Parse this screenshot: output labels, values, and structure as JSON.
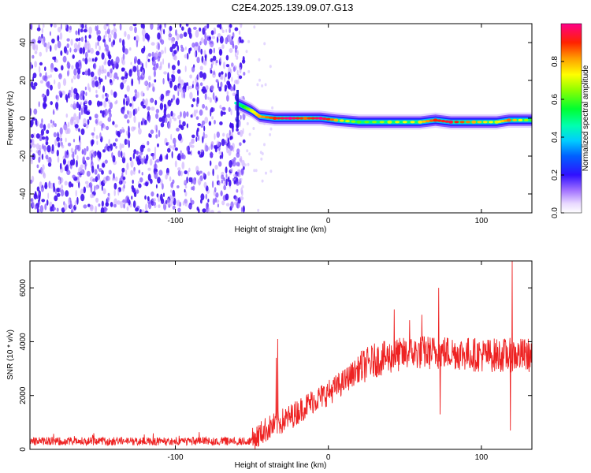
{
  "title": "C2E4.2025.139.09.07.G13",
  "colorbar": {
    "label": "Normalized spectral amplitude",
    "ticks": [
      "0.0",
      "0.2",
      "0.4",
      "0.6",
      "0.8"
    ],
    "tick_values": [
      0.0,
      0.2,
      0.4,
      0.6,
      0.8
    ],
    "range": [
      0,
      1
    ]
  },
  "chart_data": [
    {
      "type": "heatmap",
      "xlabel": "Height of straight line (km)",
      "ylabel": "Frequency (Hz)",
      "xlim": [
        -195,
        133
      ],
      "ylim": [
        -50,
        50
      ],
      "xticks": [
        -100,
        0,
        100
      ],
      "xtick_labels": [
        "-100",
        "0",
        "100"
      ],
      "yticks": [
        -40,
        -20,
        0,
        20,
        40
      ],
      "ytick_labels": [
        "-40",
        "-20",
        "0",
        "20",
        "40"
      ],
      "noise_region": {
        "x": [
          -195,
          -57
        ],
        "y": [
          -50,
          50
        ],
        "amplitude": 0.15
      },
      "ridge": [
        {
          "x": -60,
          "y": 8,
          "amp": 0.45
        },
        {
          "x": -55,
          "y": 6,
          "amp": 0.55
        },
        {
          "x": -50,
          "y": 4,
          "amp": 0.7
        },
        {
          "x": -45,
          "y": 1,
          "amp": 0.8
        },
        {
          "x": -35,
          "y": 0,
          "amp": 0.9
        },
        {
          "x": -25,
          "y": 0,
          "amp": 1.0
        },
        {
          "x": -15,
          "y": 0,
          "amp": 0.85
        },
        {
          "x": -5,
          "y": 0,
          "amp": 1.0
        },
        {
          "x": 5,
          "y": -1,
          "amp": 0.8
        },
        {
          "x": 20,
          "y": -2,
          "amp": 0.6
        },
        {
          "x": 40,
          "y": -2,
          "amp": 0.7
        },
        {
          "x": 60,
          "y": -2,
          "amp": 0.75
        },
        {
          "x": 70,
          "y": -1,
          "amp": 0.9
        },
        {
          "x": 80,
          "y": -2,
          "amp": 0.95
        },
        {
          "x": 95,
          "y": -2,
          "amp": 0.8
        },
        {
          "x": 110,
          "y": -2,
          "amp": 0.7
        },
        {
          "x": 118,
          "y": -1,
          "amp": 0.85
        },
        {
          "x": 133,
          "y": -1,
          "amp": 0.6
        }
      ]
    },
    {
      "type": "line",
      "xlabel": "Height of straight line (km)",
      "ylabel": "SNR (10 * v/v)",
      "xlim": [
        -195,
        133
      ],
      "ylim": [
        0,
        7000
      ],
      "xticks": [
        -100,
        0,
        100
      ],
      "xtick_labels": [
        "-100",
        "0",
        "100"
      ],
      "yticks": [
        0,
        2000,
        4000,
        6000
      ],
      "ytick_labels": [
        "0",
        "2000",
        "4000",
        "6000"
      ],
      "color": "#ee2222",
      "trend": [
        {
          "x": -195,
          "y": 300
        },
        {
          "x": -50,
          "y": 300
        },
        {
          "x": -42,
          "y": 700
        },
        {
          "x": -35,
          "y": 900
        },
        {
          "x": -25,
          "y": 1200
        },
        {
          "x": -10,
          "y": 1800
        },
        {
          "x": 0,
          "y": 2100
        },
        {
          "x": 10,
          "y": 2500
        },
        {
          "x": 20,
          "y": 3000
        },
        {
          "x": 30,
          "y": 3300
        },
        {
          "x": 45,
          "y": 3500
        },
        {
          "x": 60,
          "y": 3600
        },
        {
          "x": 80,
          "y": 3600
        },
        {
          "x": 100,
          "y": 3500
        },
        {
          "x": 133,
          "y": 3500
        }
      ],
      "spikes": [
        {
          "x": -33,
          "y": 4100
        },
        {
          "x": -34,
          "y": 3400
        },
        {
          "x": 43,
          "y": 5200
        },
        {
          "x": 53,
          "y": 4800
        },
        {
          "x": 61,
          "y": 5000
        },
        {
          "x": 72,
          "y": 6000
        },
        {
          "x": 73,
          "y": 1300
        },
        {
          "x": 120,
          "y": 7000
        },
        {
          "x": 119,
          "y": 700
        }
      ]
    }
  ]
}
